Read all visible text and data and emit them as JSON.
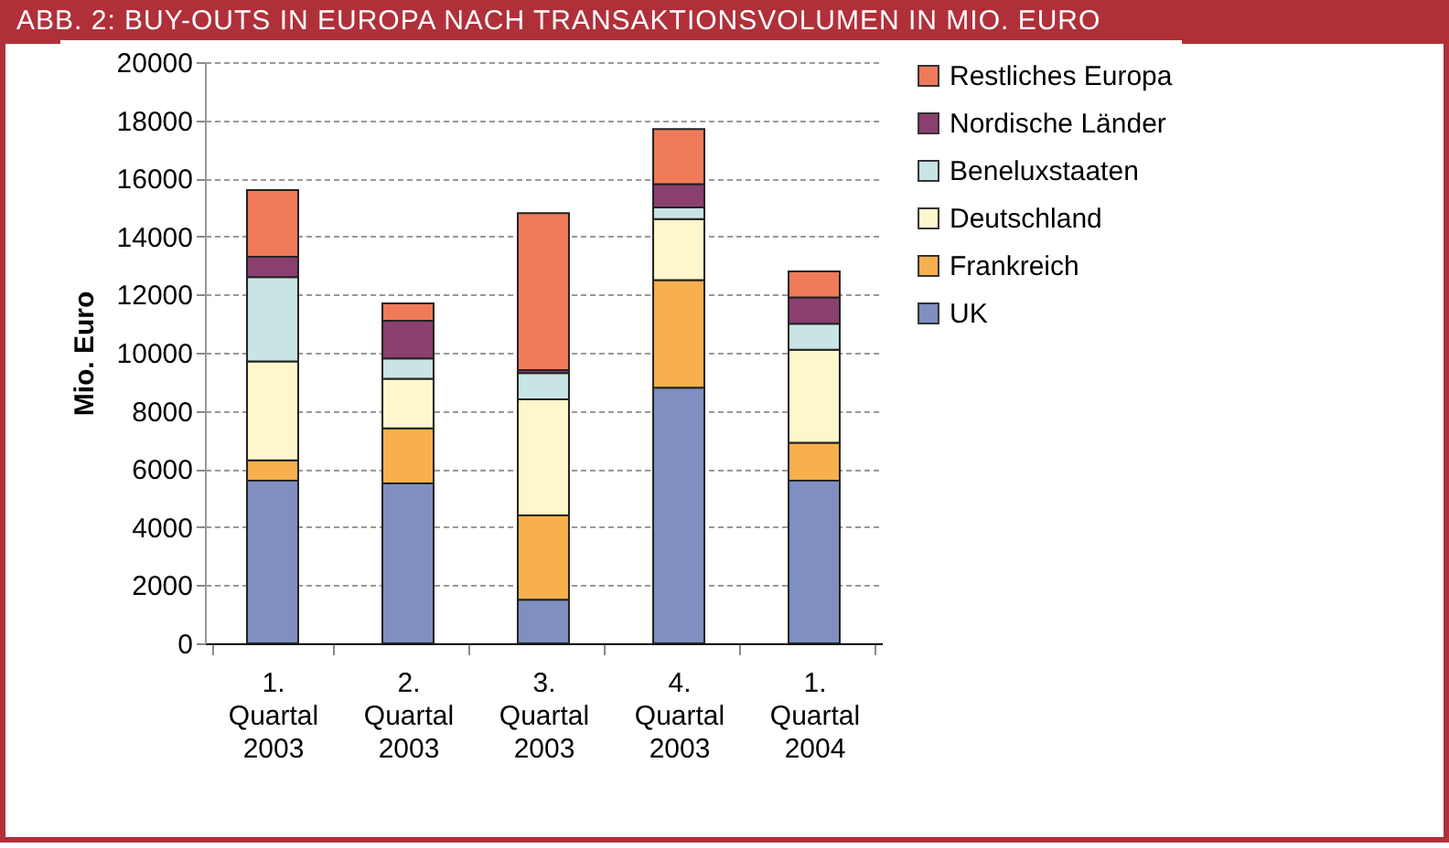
{
  "chart_data": {
    "type": "bar",
    "stacked": true,
    "title": "ABB. 2: BUY-OUTS IN EUROPA NACH TRANSAKTIONSVOLUMEN IN MIO. EURO",
    "ylabel": "Mio. Euro",
    "categories": [
      "1. Quartal 2003",
      "2. Quartal 2003",
      "3. Quartal 2003",
      "4. Quartal 2003",
      "1. Quartal 2004"
    ],
    "series": [
      {
        "name": "UK",
        "color": "#7f8fbf",
        "values": [
          5600,
          5500,
          1500,
          8800,
          5600
        ]
      },
      {
        "name": "Frankreich",
        "color": "#f7b04d",
        "values": [
          700,
          1900,
          2900,
          3700,
          1300
        ]
      },
      {
        "name": "Deutschland",
        "color": "#fff7cc",
        "values": [
          3400,
          1700,
          4000,
          2100,
          3200
        ]
      },
      {
        "name": "Beneluxstaaten",
        "color": "#c9e4e4",
        "values": [
          2900,
          700,
          900,
          400,
          900
        ]
      },
      {
        "name": "Nordische Länder",
        "color": "#8b3f6f",
        "values": [
          700,
          1300,
          100,
          800,
          900
        ]
      },
      {
        "name": "Restliches Europa",
        "color": "#ef7a5a",
        "values": [
          2300,
          600,
          5400,
          1900,
          900
        ]
      }
    ],
    "ylim": [
      0,
      20000
    ],
    "yticks": [
      0,
      2000,
      4000,
      6000,
      8000,
      10000,
      12000,
      14000,
      16000,
      18000,
      20000
    ],
    "grid": "y",
    "legend": "right"
  }
}
